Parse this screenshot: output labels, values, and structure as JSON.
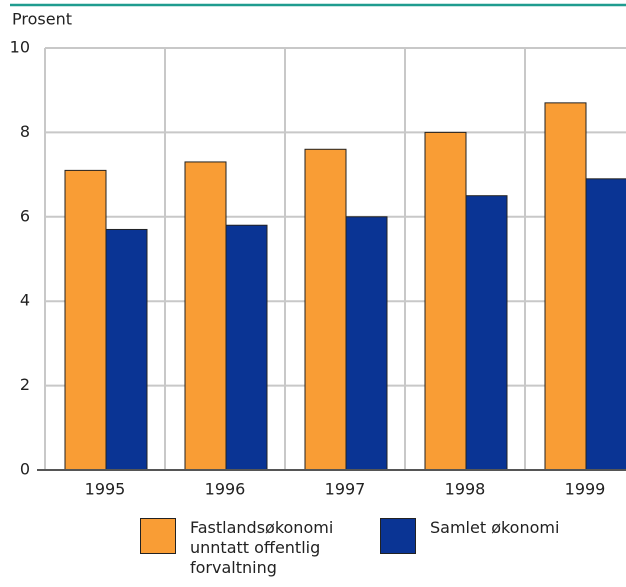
{
  "chart_data": {
    "type": "bar",
    "y_label": "Prosent",
    "categories": [
      "1995",
      "1996",
      "1997",
      "1998",
      "1999"
    ],
    "series": [
      {
        "name": "Fastlandsøkonomi unntatt offentlig forvaltning",
        "color": "#f99d35",
        "values": [
          7.1,
          7.3,
          7.6,
          8.0,
          8.7
        ]
      },
      {
        "name": "Samlet økonomi",
        "color": "#0a3494",
        "values": [
          5.7,
          5.8,
          6.0,
          6.5,
          6.9
        ]
      }
    ],
    "ylim": [
      0,
      10
    ],
    "yticks": [
      0,
      2,
      4,
      6,
      8,
      10
    ],
    "grid": true
  }
}
